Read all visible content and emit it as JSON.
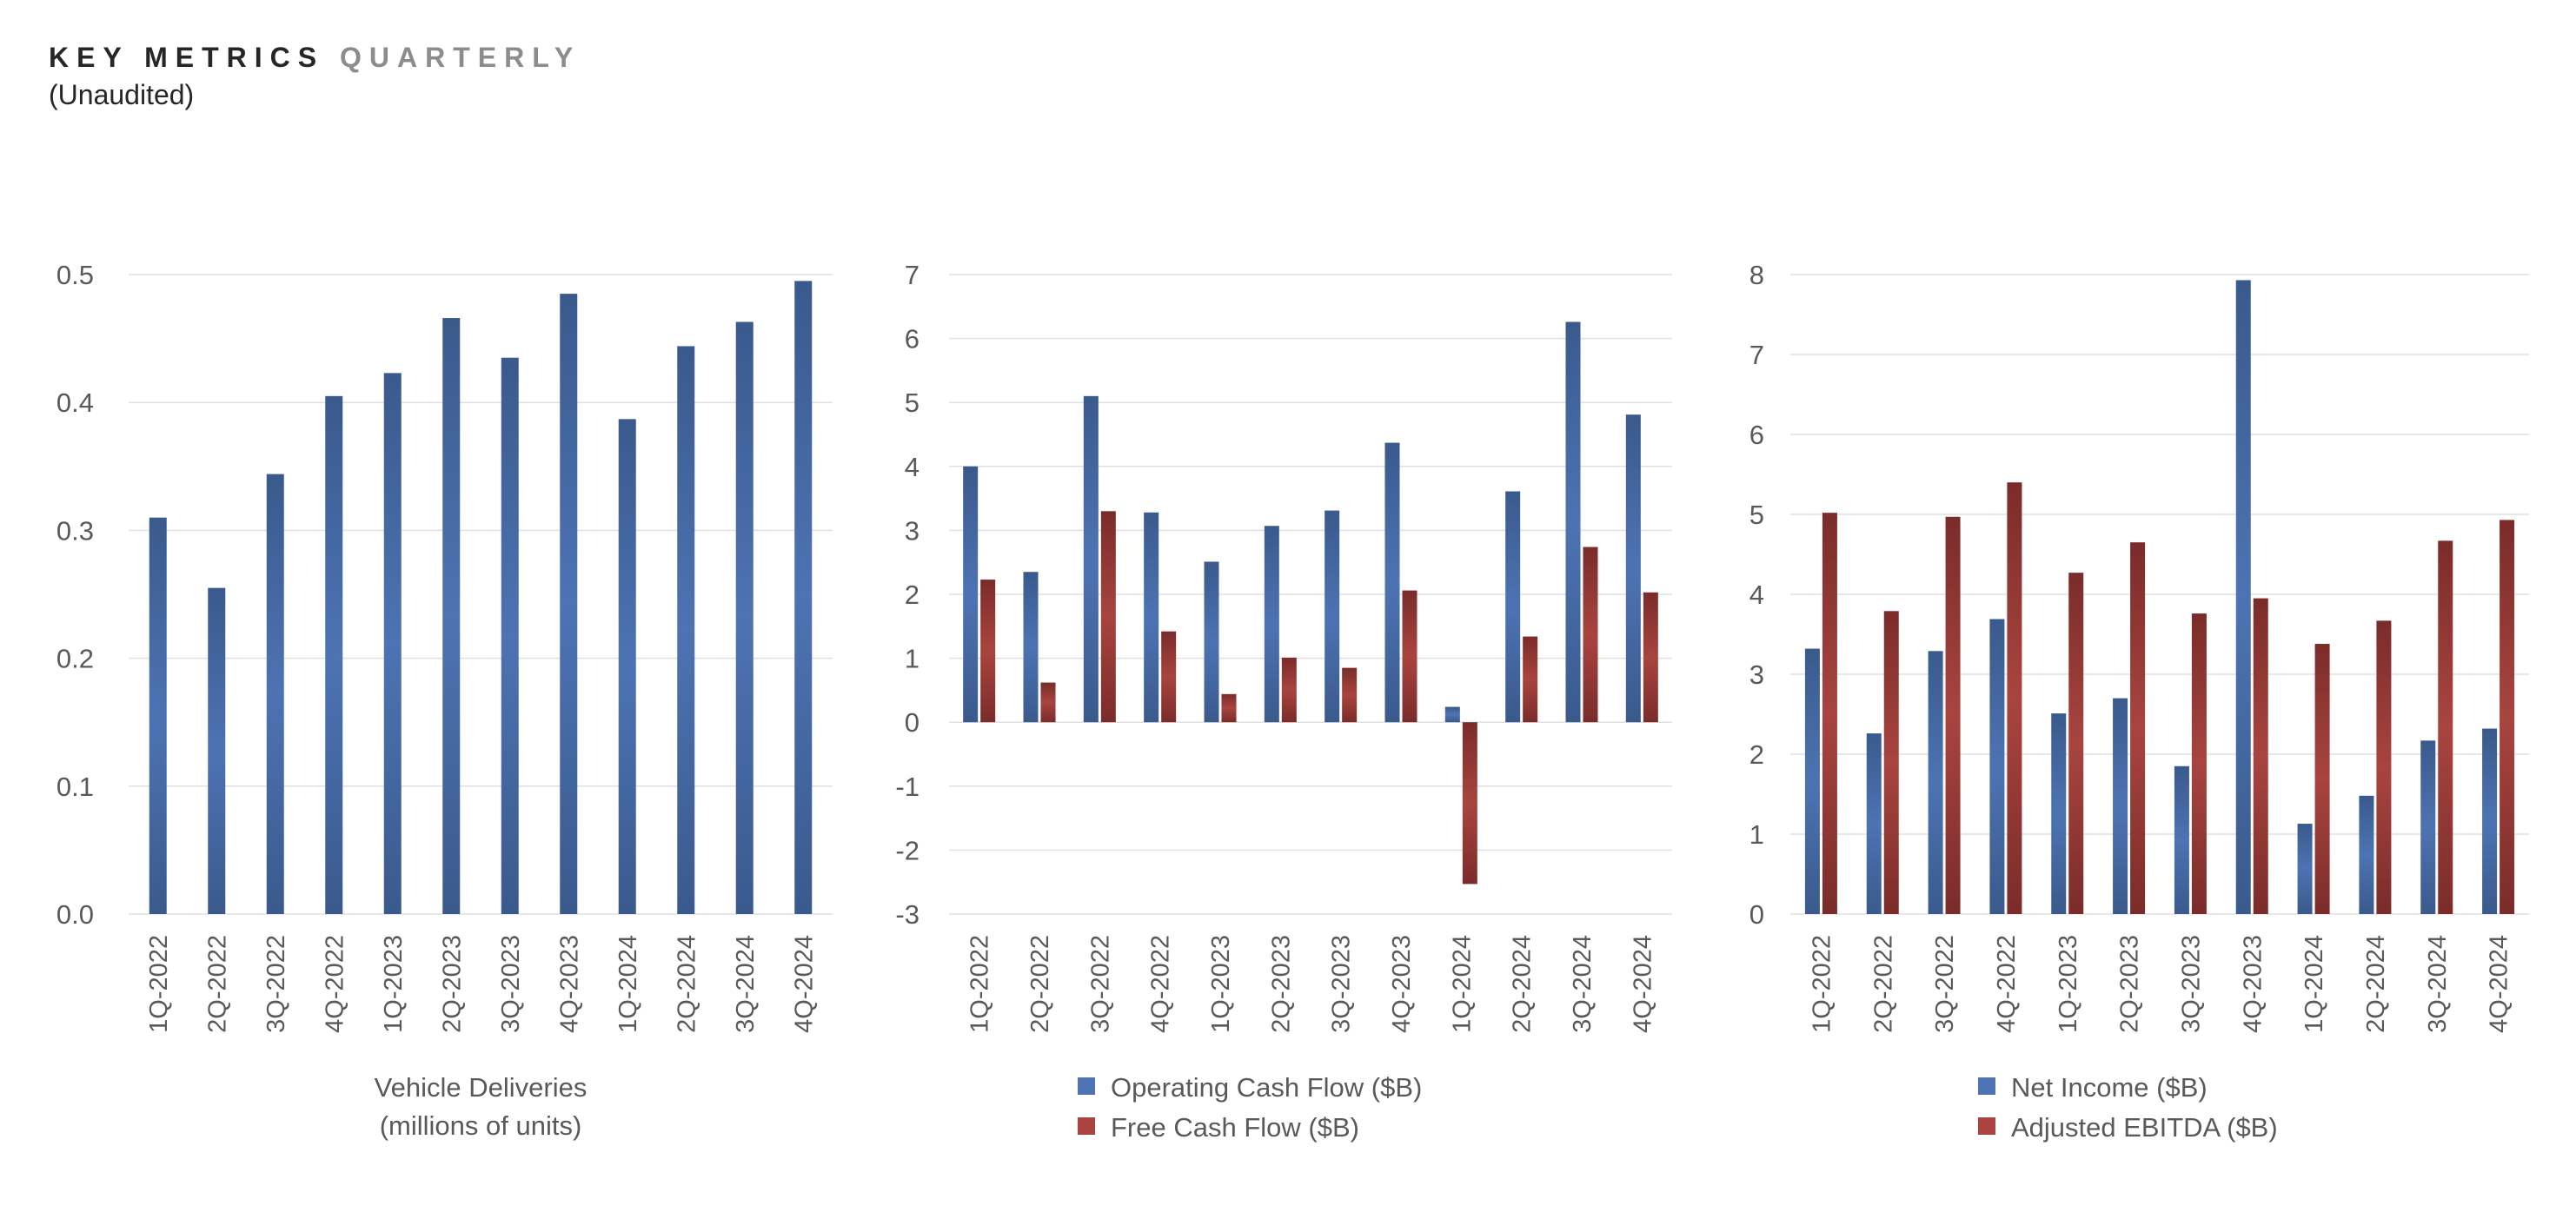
{
  "header": {
    "title_main": "KEY METRICS",
    "title_accent": "QUARTERLY",
    "subtitle": "(Unaudited)"
  },
  "colors": {
    "blue": "#4d73b3",
    "blue_dark": "#3a5a8c",
    "red": "#a9443f",
    "red_dark": "#7a2c2a",
    "grid": "#e0e0e0",
    "text": "#595959"
  },
  "chart_data": [
    {
      "type": "bar",
      "categories": [
        "1Q-2022",
        "2Q-2022",
        "3Q-2022",
        "4Q-2022",
        "1Q-2023",
        "2Q-2023",
        "3Q-2023",
        "4Q-2023",
        "1Q-2024",
        "2Q-2024",
        "3Q-2024",
        "4Q-2024"
      ],
      "series": [
        {
          "name": "Vehicle Deliveries",
          "color": "blue",
          "values": [
            0.31,
            0.255,
            0.344,
            0.405,
            0.423,
            0.466,
            0.435,
            0.485,
            0.387,
            0.444,
            0.463,
            0.495
          ]
        }
      ],
      "ylim": [
        0,
        0.5
      ],
      "yticks": [
        "0.0",
        "0.1",
        "0.2",
        "0.3",
        "0.4",
        "0.5"
      ],
      "ytick_values": [
        0,
        0.1,
        0.2,
        0.3,
        0.4,
        0.5
      ],
      "xlabel_lines": [
        "Vehicle Deliveries",
        "(millions of units)"
      ],
      "legend": []
    },
    {
      "type": "bar",
      "categories": [
        "1Q-2022",
        "2Q-2022",
        "3Q-2022",
        "4Q-2022",
        "1Q-2023",
        "2Q-2023",
        "3Q-2023",
        "4Q-2023",
        "1Q-2024",
        "2Q-2024",
        "3Q-2024",
        "4Q-2024"
      ],
      "series": [
        {
          "name": "Operating Cash Flow ($B)",
          "color": "blue",
          "values": [
            4.0,
            2.35,
            5.1,
            3.28,
            2.51,
            3.07,
            3.31,
            4.37,
            0.24,
            3.61,
            6.26,
            4.81
          ]
        },
        {
          "name": "Free Cash Flow ($B)",
          "color": "red",
          "values": [
            2.23,
            0.62,
            3.3,
            1.42,
            0.44,
            1.01,
            0.85,
            2.06,
            -2.53,
            1.34,
            2.74,
            2.03
          ]
        }
      ],
      "ylim": [
        -3,
        7
      ],
      "yticks": [
        "-3",
        "-2",
        "-1",
        "0",
        "1",
        "2",
        "3",
        "4",
        "5",
        "6",
        "7"
      ],
      "ytick_values": [
        -3,
        -2,
        -1,
        0,
        1,
        2,
        3,
        4,
        5,
        6,
        7
      ],
      "xlabel_lines": [],
      "legend": [
        "Operating Cash Flow ($B)",
        "Free Cash Flow ($B)"
      ]
    },
    {
      "type": "bar",
      "categories": [
        "1Q-2022",
        "2Q-2022",
        "3Q-2022",
        "4Q-2022",
        "1Q-2023",
        "2Q-2023",
        "3Q-2023",
        "4Q-2023",
        "1Q-2024",
        "2Q-2024",
        "3Q-2024",
        "4Q-2024"
      ],
      "series": [
        {
          "name": "Net Income ($B)",
          "color": "blue",
          "values": [
            3.32,
            2.26,
            3.29,
            3.69,
            2.51,
            2.7,
            1.85,
            7.93,
            1.13,
            1.48,
            2.17,
            2.32
          ]
        },
        {
          "name": "Adjusted EBITDA ($B)",
          "color": "red",
          "values": [
            5.02,
            3.79,
            4.97,
            5.4,
            4.27,
            4.65,
            3.76,
            3.95,
            3.38,
            3.67,
            4.67,
            4.93
          ]
        }
      ],
      "ylim": [
        0,
        8
      ],
      "yticks": [
        "0",
        "1",
        "2",
        "3",
        "4",
        "5",
        "6",
        "7",
        "8"
      ],
      "ytick_values": [
        0,
        1,
        2,
        3,
        4,
        5,
        6,
        7,
        8
      ],
      "xlabel_lines": [],
      "legend": [
        "Net Income ($B)",
        "Adjusted EBITDA ($B)"
      ]
    }
  ]
}
